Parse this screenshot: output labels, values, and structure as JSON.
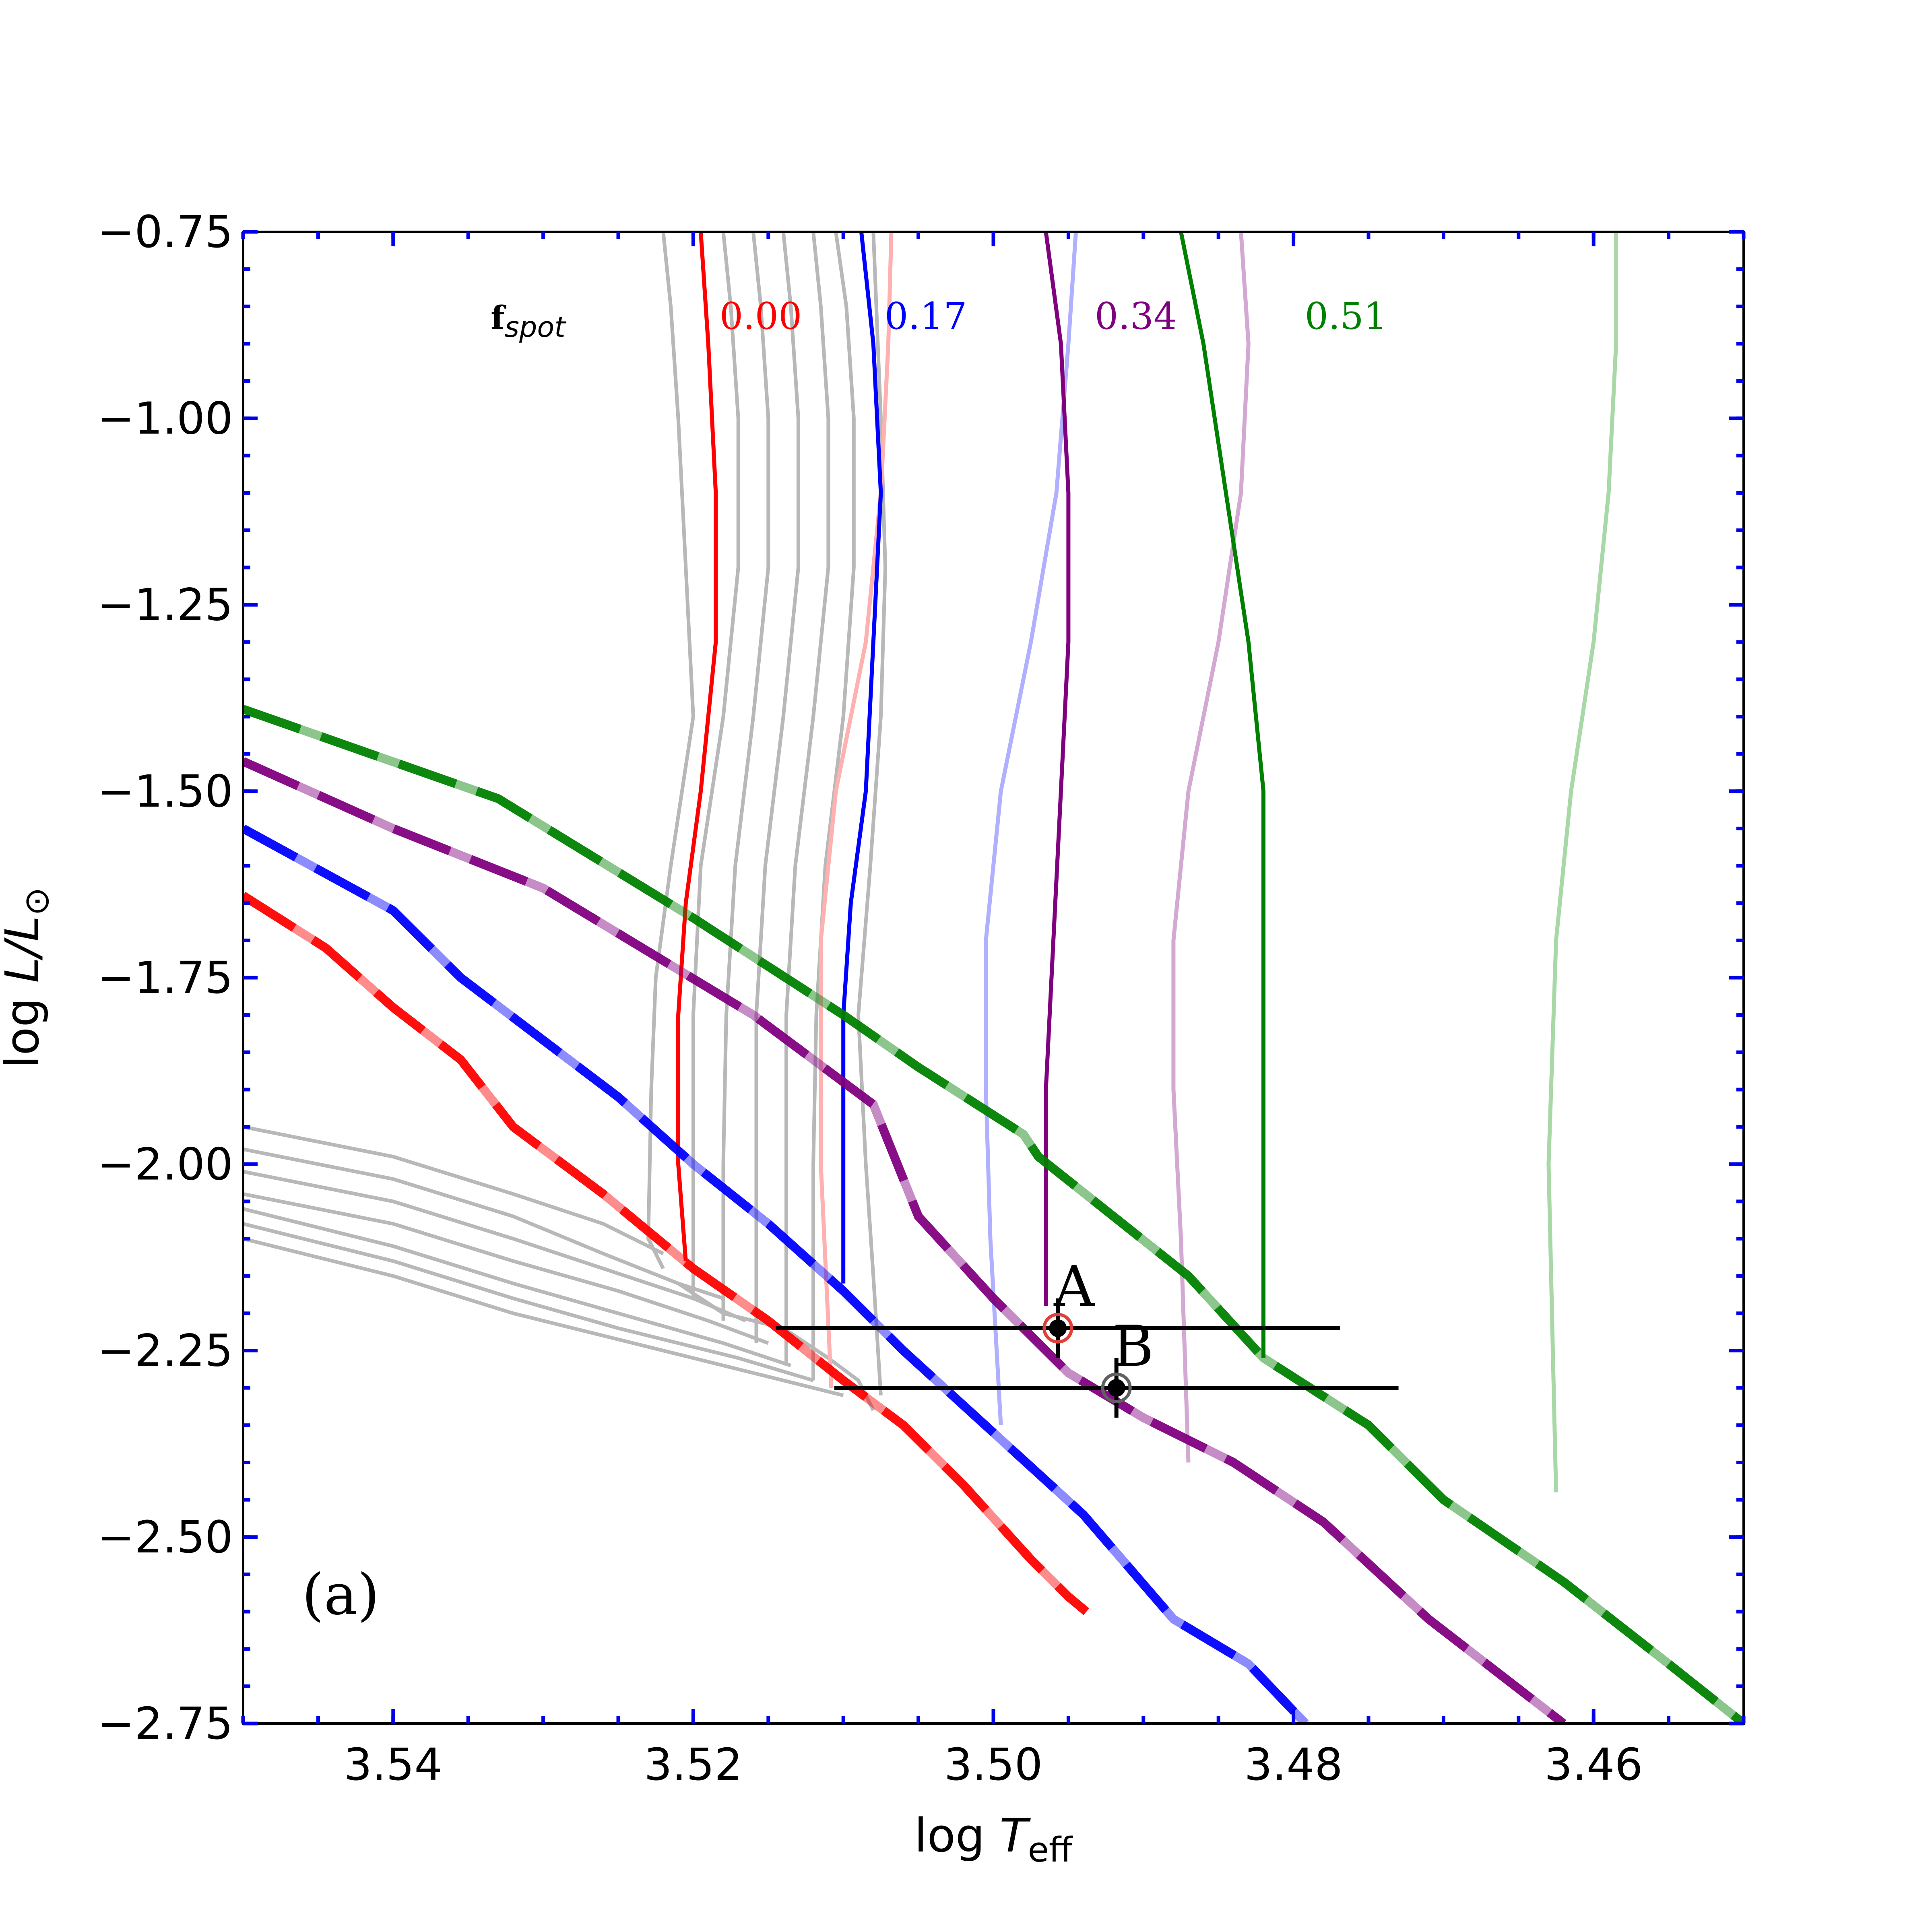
{
  "chart_data": {
    "type": "line",
    "panel_label": "(a)",
    "xlabel": {
      "prefix": "log ",
      "var": "T",
      "sub": "eff"
    },
    "ylabel": {
      "prefix": "log ",
      "var": "L/L",
      "sub": "⊙"
    },
    "xlim": [
      3.55,
      3.45
    ],
    "ylim": [
      -2.75,
      -0.75
    ],
    "x_ticks": [
      3.54,
      3.52,
      3.5,
      3.48,
      3.46
    ],
    "x_tick_labels": [
      "3.54",
      "3.52",
      "3.50",
      "3.48",
      "3.46"
    ],
    "y_ticks": [
      -0.75,
      -1.0,
      -1.25,
      -1.5,
      -1.75,
      -2.0,
      -2.25,
      -2.5,
      -2.75
    ],
    "y_tick_labels": [
      "−0.75",
      "−1.00",
      "−1.25",
      "−1.50",
      "−1.75",
      "−2.00",
      "−2.25",
      "−2.50",
      "−2.75"
    ],
    "spot_legend": {
      "title_main": "f",
      "title_sub": "spot",
      "entries": [
        {
          "label": "0.00",
          "color": "#ff0000",
          "x": 3.5155,
          "y": -0.88
        },
        {
          "label": "0.17",
          "color": "#0000ff",
          "x": 3.5045,
          "y": -0.88
        },
        {
          "label": "0.34",
          "color": "#800080",
          "x": 3.4905,
          "y": -0.88
        },
        {
          "label": "0.51",
          "color": "#008000",
          "x": 3.4765,
          "y": -0.88
        }
      ],
      "title_x": 3.5335,
      "title_y": -0.88
    },
    "isochrones": [
      {
        "f_spot": "0.00",
        "color": "#ff0000",
        "x": [
          3.55,
          3.5445,
          3.54,
          3.5355,
          3.532,
          3.526,
          3.52,
          3.515,
          3.51,
          3.506,
          3.502,
          3.4975,
          3.495,
          3.4938
        ],
        "y": [
          -1.64,
          -1.71,
          -1.79,
          -1.86,
          -1.95,
          -2.04,
          -2.14,
          -2.21,
          -2.29,
          -2.35,
          -2.43,
          -2.53,
          -2.58,
          -2.6
        ]
      },
      {
        "f_spot": "0.17",
        "color": "#0000ff",
        "x": [
          3.55,
          3.54,
          3.5355,
          3.525,
          3.52,
          3.515,
          3.51,
          3.506,
          3.5,
          3.494,
          3.488,
          3.483,
          3.4792
        ],
        "y": [
          -1.55,
          -1.66,
          -1.75,
          -1.91,
          -2.0,
          -2.08,
          -2.17,
          -2.25,
          -2.36,
          -2.47,
          -2.61,
          -2.67,
          -2.75
        ]
      },
      {
        "f_spot": "0.34",
        "color": "#800080",
        "x": [
          3.55,
          3.54,
          3.53,
          3.516,
          3.508,
          3.505,
          3.5,
          3.495,
          3.49,
          3.484,
          3.478,
          3.471,
          3.462
        ],
        "y": [
          -1.46,
          -1.55,
          -1.63,
          -1.8,
          -1.92,
          -2.07,
          -2.18,
          -2.28,
          -2.34,
          -2.4,
          -2.48,
          -2.61,
          -2.75
        ]
      },
      {
        "f_spot": "0.51",
        "color": "#008000",
        "x": [
          3.55,
          3.533,
          3.52,
          3.51,
          3.505,
          3.498,
          3.497,
          3.487,
          3.482,
          3.475,
          3.47,
          3.462,
          3.455,
          3.45
        ],
        "y": [
          -1.39,
          -1.51,
          -1.67,
          -1.8,
          -1.87,
          -1.96,
          -1.99,
          -2.15,
          -2.26,
          -2.35,
          -2.45,
          -2.56,
          -2.67,
          -2.75
        ]
      }
    ],
    "tracks": [
      {
        "f_spot": "0.00",
        "color": "#ff0000",
        "x": [
          3.5195,
          3.519,
          3.5185,
          3.5185,
          3.5195,
          3.5205,
          3.521,
          3.521,
          3.5205
        ],
        "y": [
          -0.75,
          -0.9,
          -1.1,
          -1.3,
          -1.5,
          -1.65,
          -1.8,
          -2.0,
          -2.13
        ]
      },
      {
        "f_spot": "0.00",
        "color": "#ffb0b0",
        "x": [
          3.5068,
          3.507,
          3.5075,
          3.5085,
          3.5105,
          3.5115,
          3.5115,
          3.5108
        ],
        "y": [
          -0.75,
          -0.9,
          -1.1,
          -1.3,
          -1.5,
          -1.7,
          -2.0,
          -2.3
        ]
      },
      {
        "f_spot": "0.17",
        "color": "#0000ff",
        "x": [
          3.5088,
          3.508,
          3.5075,
          3.508,
          3.5085,
          3.5095,
          3.51,
          3.51,
          3.51
        ],
        "y": [
          -0.75,
          -0.9,
          -1.1,
          -1.3,
          -1.5,
          -1.65,
          -1.8,
          -2.0,
          -2.16
        ]
      },
      {
        "f_spot": "0.17",
        "color": "#b0b0ff",
        "x": [
          3.4945,
          3.495,
          3.4958,
          3.4975,
          3.4995,
          3.5005,
          3.5005,
          3.5002,
          3.4995
        ],
        "y": [
          -0.75,
          -0.9,
          -1.1,
          -1.3,
          -1.5,
          -1.7,
          -1.9,
          -2.1,
          -2.35
        ]
      },
      {
        "f_spot": "0.34",
        "color": "#800080",
        "x": [
          3.4965,
          3.4955,
          3.495,
          3.495,
          3.4955,
          3.496,
          3.4965,
          3.4965
        ],
        "y": [
          -0.75,
          -0.9,
          -1.1,
          -1.3,
          -1.5,
          -1.7,
          -1.9,
          -2.19
        ]
      },
      {
        "f_spot": "0.34",
        "color": "#d3a8d3",
        "x": [
          3.4835,
          3.483,
          3.4835,
          3.485,
          3.487,
          3.488,
          3.488,
          3.4875,
          3.487
        ],
        "y": [
          -0.75,
          -0.9,
          -1.1,
          -1.3,
          -1.5,
          -1.7,
          -1.9,
          -2.1,
          -2.4
        ]
      },
      {
        "f_spot": "0.51",
        "color": "#008000",
        "x": [
          3.4875,
          3.486,
          3.4845,
          3.483,
          3.482,
          3.482,
          3.482,
          3.482
        ],
        "y": [
          -0.75,
          -0.9,
          -1.1,
          -1.3,
          -1.5,
          -1.7,
          -2.0,
          -2.26
        ]
      },
      {
        "f_spot": "0.51",
        "color": "#a8d8a8",
        "x": [
          3.4585,
          3.4585,
          3.459,
          3.46,
          3.4615,
          3.4625,
          3.463,
          3.4625
        ],
        "y": [
          -0.75,
          -0.9,
          -1.1,
          -1.3,
          -1.5,
          -1.7,
          -2.0,
          -2.44
        ]
      }
    ],
    "gray_tracks": [
      {
        "x": [
          3.522,
          3.5215,
          3.521,
          3.5205,
          3.52,
          3.5215,
          3.5225,
          3.5228,
          3.523,
          3.522
        ],
        "y": [
          -0.75,
          -0.85,
          -1.0,
          -1.2,
          -1.4,
          -1.6,
          -1.75,
          -1.9,
          -2.1,
          -2.14
        ]
      },
      {
        "x": [
          3.518,
          3.5175,
          3.517,
          3.517,
          3.518,
          3.5195,
          3.52,
          3.52,
          3.52
        ],
        "y": [
          -0.75,
          -0.85,
          -1.0,
          -1.2,
          -1.4,
          -1.6,
          -1.8,
          -2.0,
          -2.18
        ]
      },
      {
        "x": [
          3.516,
          3.5155,
          3.515,
          3.515,
          3.516,
          3.5172,
          3.5178,
          3.518,
          3.518
        ],
        "y": [
          -0.75,
          -0.85,
          -1.0,
          -1.2,
          -1.4,
          -1.6,
          -1.8,
          -2.0,
          -2.21
        ]
      },
      {
        "x": [
          3.514,
          3.5135,
          3.513,
          3.513,
          3.514,
          3.5152,
          3.5158,
          3.5158,
          3.5158
        ],
        "y": [
          -0.75,
          -0.85,
          -1.0,
          -1.2,
          -1.4,
          -1.6,
          -1.8,
          -2.0,
          -2.24
        ]
      },
      {
        "x": [
          3.512,
          3.5115,
          3.511,
          3.511,
          3.512,
          3.5132,
          3.5138,
          3.5138,
          3.5138
        ],
        "y": [
          -0.75,
          -0.85,
          -1.0,
          -1.2,
          -1.4,
          -1.6,
          -1.8,
          -2.0,
          -2.27
        ]
      },
      {
        "x": [
          3.5105,
          3.5098,
          3.5093,
          3.5093,
          3.51,
          3.5112,
          3.5118,
          3.512,
          3.512
        ],
        "y": [
          -0.75,
          -0.85,
          -1.0,
          -1.2,
          -1.4,
          -1.6,
          -1.8,
          -2.0,
          -2.29
        ]
      },
      {
        "x": [
          3.508,
          3.5078,
          3.5075,
          3.5072,
          3.5075,
          3.5082,
          3.509,
          3.5085,
          3.508,
          3.5075
        ],
        "y": [
          -0.75,
          -0.85,
          -1.0,
          -1.2,
          -1.4,
          -1.6,
          -1.8,
          -2.0,
          -2.15,
          -2.31
        ]
      },
      {
        "x": [
          3.55,
          3.54,
          3.532,
          3.526,
          3.522
        ],
        "y": [
          -1.95,
          -1.99,
          -2.04,
          -2.08,
          -2.12
        ]
      },
      {
        "x": [
          3.55,
          3.54,
          3.532,
          3.526,
          3.521,
          3.518
        ],
        "y": [
          -1.98,
          -2.02,
          -2.07,
          -2.12,
          -2.16,
          -2.18
        ]
      },
      {
        "x": [
          3.55,
          3.54,
          3.532,
          3.526,
          3.52,
          3.5165
        ],
        "y": [
          -2.01,
          -2.05,
          -2.1,
          -2.14,
          -2.18,
          -2.21
        ]
      },
      {
        "x": [
          3.55,
          3.54,
          3.532,
          3.525,
          3.519,
          3.515
        ],
        "y": [
          -2.04,
          -2.08,
          -2.13,
          -2.17,
          -2.21,
          -2.24
        ]
      },
      {
        "x": [
          3.55,
          3.54,
          3.532,
          3.525,
          3.518,
          3.5135
        ],
        "y": [
          -2.06,
          -2.11,
          -2.16,
          -2.2,
          -2.24,
          -2.27
        ]
      },
      {
        "x": [
          3.55,
          3.54,
          3.532,
          3.525,
          3.517,
          3.512
        ],
        "y": [
          -2.08,
          -2.13,
          -2.18,
          -2.22,
          -2.26,
          -2.29
        ]
      },
      {
        "x": [
          3.55,
          3.54,
          3.532,
          3.524,
          3.516,
          3.51
        ],
        "y": [
          -2.1,
          -2.15,
          -2.2,
          -2.24,
          -2.28,
          -2.31
        ]
      },
      {
        "x": [
          3.521,
          3.518,
          3.514,
          3.511,
          3.509,
          3.508
        ],
        "y": [
          -2.16,
          -2.2,
          -2.22,
          -2.26,
          -2.29,
          -2.33
        ]
      }
    ],
    "stars": [
      {
        "label": "A",
        "x": 3.4957,
        "y": -2.22,
        "xerr": 0.0188,
        "yerr": 0.04,
        "ring_color": "#e0403a"
      },
      {
        "label": "B",
        "x": 3.4918,
        "y": -2.3,
        "xerr": 0.0188,
        "yerr": 0.04,
        "ring_color": "#606060"
      }
    ]
  }
}
